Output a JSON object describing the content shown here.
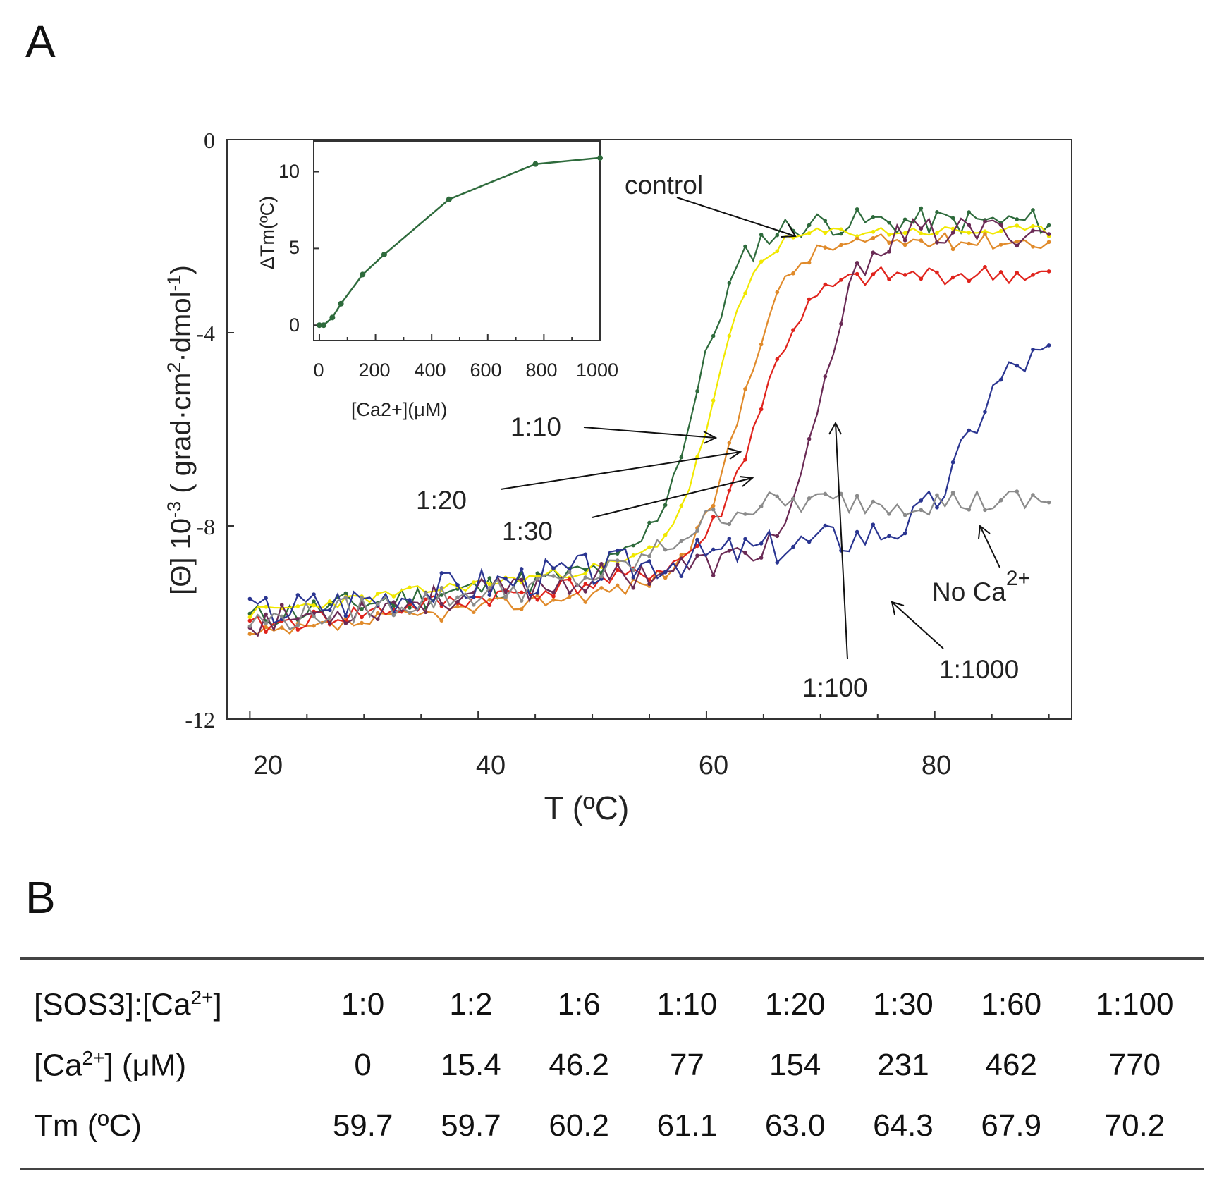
{
  "panel_a_label": "A",
  "panel_b_label": "B",
  "colors": {
    "control": "#2e6b3c",
    "1:10": "#f1e800",
    "1:20": "#e08a2a",
    "1:30": "#e0231c",
    "1:100": "#6a2a55",
    "1:1000": "#2a3591",
    "noca": "#8b8b8b",
    "inset": "#2e6b3c"
  },
  "chart_data": [
    {
      "type": "line",
      "title": "",
      "xlabel": "T (ºC)",
      "ylabel_parts": [
        "[Θ] 10",
        "-3",
        " ( grad·cm",
        "2",
        "·dmol",
        "-1",
        ")"
      ],
      "xlim": [
        18,
        92
      ],
      "ylim": [
        -12,
        0
      ],
      "x_ticks": [
        "20",
        "40",
        "60",
        "80"
      ],
      "y_ticks": [
        "0",
        "-4",
        "-8",
        "-12"
      ],
      "series": [
        {
          "name": "control",
          "key": "control",
          "start": -9.9,
          "end": -1.7,
          "tm": 59.2,
          "width": 2.0,
          "noise": 0.28,
          "seed": 11
        },
        {
          "name": "1:10",
          "key": "1:10",
          "start": -9.8,
          "end": -1.9,
          "tm": 60.8,
          "width": 1.8,
          "noise": 0.12,
          "seed": 23
        },
        {
          "name": "1:20",
          "key": "1:20",
          "start": -10.3,
          "end": -2.1,
          "tm": 63.0,
          "width": 2.0,
          "noise": 0.17,
          "seed": 37
        },
        {
          "name": "1:30",
          "key": "1:30",
          "start": -10.1,
          "end": -2.8,
          "tm": 64.4,
          "width": 2.2,
          "noise": 0.2,
          "seed": 41
        },
        {
          "name": "1:100",
          "key": "1:100",
          "start": -10.0,
          "end": -1.9,
          "tm": 70.3,
          "width": 1.6,
          "noise": 0.3,
          "seed": 53
        },
        {
          "name": "1:1000",
          "key": "1:1000",
          "start": -9.8,
          "end": -4.4,
          "tm": 83.0,
          "width": 1.7,
          "noise": 0.38,
          "seed": 67
        },
        {
          "name": "No Ca2+",
          "key": "noca",
          "start": -10.0,
          "end": -7.5,
          "tm": 58.0,
          "width": 2.5,
          "noise": 0.28,
          "seed": 79
        }
      ],
      "annotations": {
        "control": "control",
        "r10": "1:10",
        "r20": "1:20",
        "r30": "1:30",
        "r100": "1:100",
        "r1000": "1:1000",
        "noca_text": "No Ca",
        "noca_sup": "2+"
      }
    },
    {
      "type": "line",
      "title": "",
      "xlabel": "[Ca2+](μM)",
      "ylabel": "ΔTm(ºC)",
      "xlim": [
        -20,
        1000
      ],
      "ylim": [
        -1,
        12
      ],
      "x_ticks": [
        "0",
        "200",
        "400",
        "600",
        "800",
        "1000"
      ],
      "y_ticks": [
        "0",
        "5",
        "10"
      ],
      "x": [
        0,
        15.4,
        46.2,
        77,
        154,
        231,
        462,
        770,
        1000
      ],
      "y": [
        0,
        0,
        0.5,
        1.4,
        3.3,
        4.6,
        8.2,
        10.5,
        10.9
      ]
    }
  ],
  "table": {
    "rows": [
      {
        "head_pre": "[SOS3]:[Ca",
        "head_sup": "2+",
        "head_post": "]",
        "values": [
          "1:0",
          "1:2",
          "1:6",
          "1:10",
          "1:20",
          "1:30",
          "1:60",
          "1:100"
        ]
      },
      {
        "head_pre": "[Ca",
        "head_sup": "2+",
        "head_post": "] (μM)",
        "values": [
          "0",
          "15.4",
          "46.2",
          "77",
          "154",
          "231",
          "462",
          "770"
        ]
      },
      {
        "head_pre": "Tm (ºC)",
        "head_sup": "",
        "head_post": "",
        "values": [
          "59.7",
          "59.7",
          "60.2",
          "61.1",
          "63.0",
          "64.3",
          "67.9",
          "70.2"
        ]
      }
    ]
  }
}
